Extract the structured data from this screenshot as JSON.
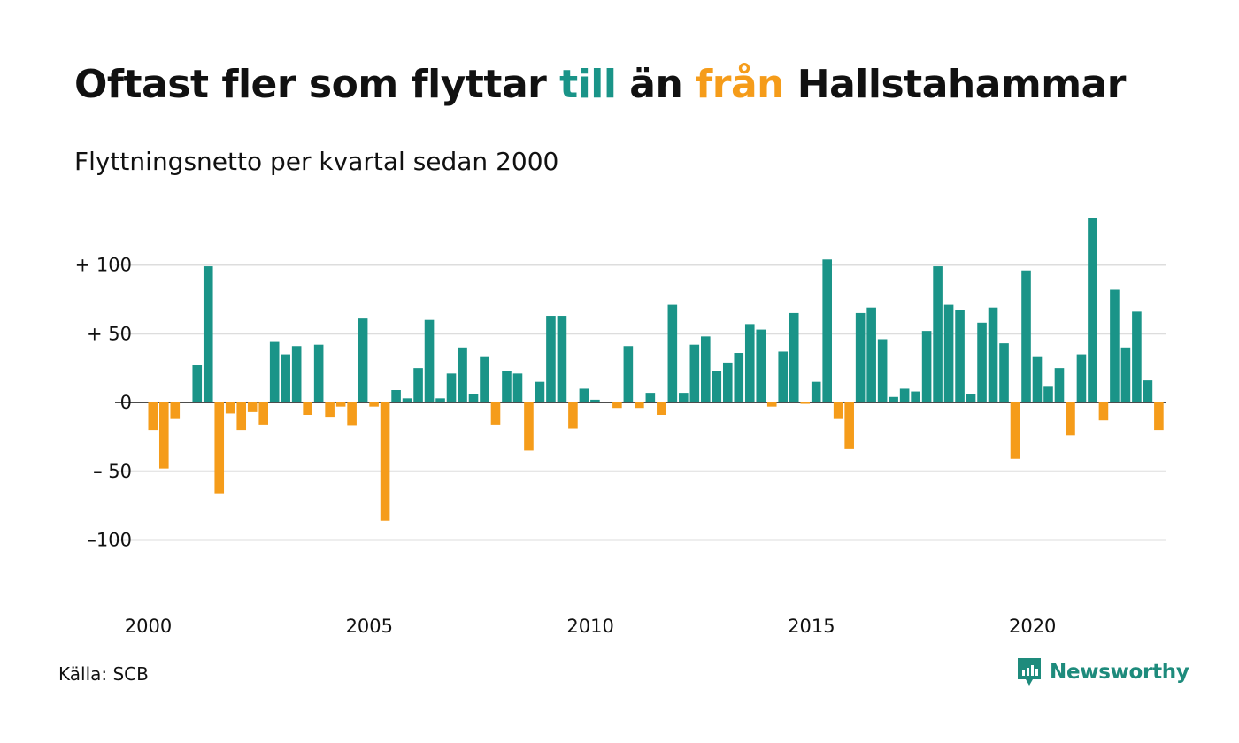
{
  "header": {
    "title_pre": "Oftast fler som flyttar ",
    "title_till": "till",
    "title_mid": " än ",
    "title_fran": "från",
    "title_post": " Hallstahammar",
    "subtitle": "Flyttningsnetto per kvartal sedan 2000"
  },
  "footer": {
    "source": "Källa: SCB",
    "brand": "Newsworthy"
  },
  "colors": {
    "positive": "#1a9488",
    "negative": "#f59c1a",
    "brand": "#1e8b7c",
    "grid": "#dddddd"
  },
  "chart_data": {
    "type": "bar",
    "x_start": "2000 Q1",
    "y_ticks": [
      100,
      50,
      0,
      -50,
      -100
    ],
    "y_tick_labels": [
      "+ 100",
      "+  50",
      "0",
      "– 50",
      "–100"
    ],
    "x_ticks": [
      "2000",
      "2005",
      "2010",
      "2015",
      "2020"
    ],
    "ylim": [
      -140,
      140
    ],
    "grid": true,
    "values": [
      -20,
      -48,
      -12,
      0,
      27,
      99,
      -66,
      -8,
      -20,
      -7,
      -16,
      44,
      35,
      41,
      -9,
      42,
      -11,
      -3,
      -17,
      61,
      -3,
      -86,
      9,
      3,
      25,
      60,
      3,
      21,
      40,
      6,
      33,
      -16,
      23,
      21,
      -35,
      15,
      63,
      63,
      -19,
      10,
      2,
      0,
      -4,
      41,
      -4,
      7,
      -9,
      71,
      7,
      42,
      48,
      23,
      29,
      36,
      57,
      53,
      -3,
      37,
      65,
      -1,
      15,
      104,
      -12,
      -34,
      65,
      69,
      46,
      4,
      10,
      8,
      52,
      99,
      71,
      67,
      6,
      58,
      69,
      43,
      -41,
      96,
      33,
      12,
      25,
      -24,
      35,
      134,
      -13,
      82,
      40,
      66,
      16,
      -20
    ]
  }
}
